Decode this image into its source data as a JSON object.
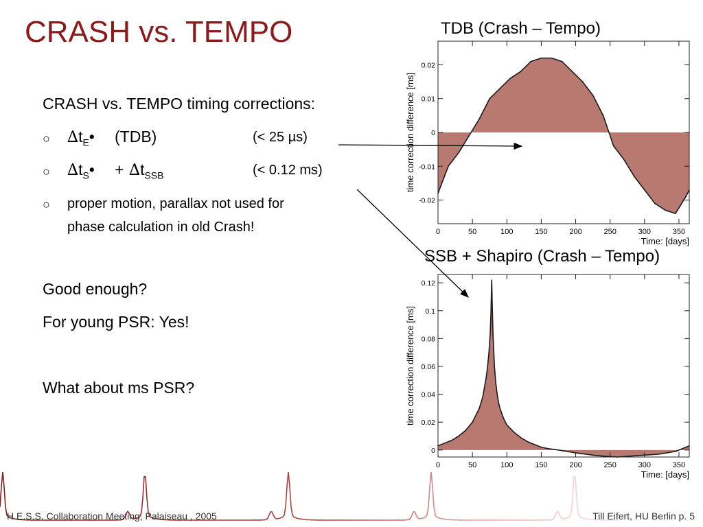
{
  "slide": {
    "title": "CRASH vs. TEMPO",
    "heading": "CRASH vs. TEMPO timing corrections:",
    "bullet_marker": "○",
    "delta": "∆",
    "t": "t",
    "dot": "•",
    "bullet1": {
      "sub": "E",
      "text": "(TDB)",
      "note": "(< 25 µs)"
    },
    "bullet2": {
      "sub1": "S",
      "plus": "+",
      "sub2": "SSB",
      "note": "(< 0.12 ms)"
    },
    "bullet3": {
      "line1": "proper motion, parallax not used for",
      "line2": "phase calculation in old Crash!"
    },
    "question": "Good enough?",
    "answer": "For young PSR: Yes!",
    "question2": "What about ms PSR?",
    "footer_left": "H.E.S.S. Collaboration Meeting, Palaiseau , 2005",
    "footer_right": "Till Eifert, HU Berlin   p. 5"
  },
  "colors": {
    "title": "#8b1a1a",
    "fill": "#b87a70",
    "edge": "#1a1a1a",
    "pulse": "#c0504d"
  },
  "chart_data": [
    {
      "type": "area",
      "title": "TDB (Crash – Tempo)",
      "xlabel": "Time: [days]",
      "ylabel": "time correction difference [ms]",
      "xlim": [
        0,
        365
      ],
      "ylim": [
        -0.027,
        0.027
      ],
      "xticks": [
        "0",
        "50",
        "100",
        "150",
        "200",
        "250",
        "300",
        "350"
      ],
      "yticks": [
        "0.02",
        "0.01",
        "0",
        "-0.01",
        "-0.02"
      ],
      "x": [
        0,
        15,
        30,
        45,
        60,
        75,
        90,
        105,
        120,
        135,
        150,
        165,
        180,
        195,
        210,
        225,
        240,
        255,
        270,
        285,
        300,
        315,
        330,
        345,
        360,
        365
      ],
      "y": [
        -0.018,
        -0.01,
        -0.006,
        -0.001,
        0.004,
        0.01,
        0.013,
        0.016,
        0.018,
        0.021,
        0.022,
        0.022,
        0.021,
        0.018,
        0.015,
        0.011,
        0.005,
        -0.004,
        -0.008,
        -0.013,
        -0.017,
        -0.021,
        -0.023,
        -0.024,
        -0.019,
        -0.017
      ]
    },
    {
      "type": "area",
      "title": "SSB + Shapiro (Crash – Tempo)",
      "xlabel": "Time: [days]",
      "ylabel": "time correction difference [ms]",
      "xlim": [
        0,
        365
      ],
      "ylim": [
        -0.005,
        0.126
      ],
      "xticks": [
        "0",
        "50",
        "100",
        "150",
        "200",
        "250",
        "300",
        "350"
      ],
      "yticks": [
        "0.12",
        "0.1",
        "0.08",
        "0.06",
        "0.04",
        "0.02",
        "0"
      ],
      "x": [
        0,
        10,
        20,
        30,
        40,
        50,
        60,
        65,
        70,
        72,
        74,
        76,
        77,
        78,
        79,
        80,
        82,
        84,
        86,
        88,
        90,
        95,
        100,
        110,
        120,
        130,
        140,
        150,
        160,
        175,
        200,
        230,
        260,
        290,
        320,
        345,
        360,
        365
      ],
      "y": [
        0.003,
        0.005,
        0.007,
        0.01,
        0.014,
        0.02,
        0.03,
        0.038,
        0.052,
        0.06,
        0.07,
        0.085,
        0.1,
        0.122,
        0.1,
        0.082,
        0.06,
        0.048,
        0.04,
        0.034,
        0.03,
        0.023,
        0.018,
        0.013,
        0.009,
        0.006,
        0.004,
        0.002,
        0.001,
        0.0,
        -0.002,
        -0.004,
        -0.005,
        -0.004,
        -0.003,
        -0.001,
        0.002,
        0.003
      ]
    }
  ]
}
